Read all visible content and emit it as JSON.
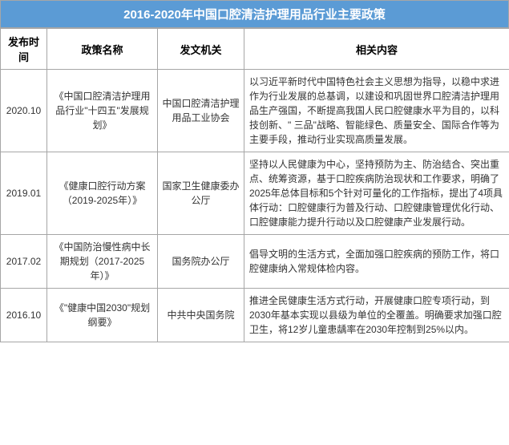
{
  "title": "2016-2020年中国口腔清洁护理用品行业主要政策",
  "headers": {
    "date": "发布时间",
    "name": "政策名称",
    "org": "发文机关",
    "content": "相关内容"
  },
  "rows": [
    {
      "date": "2020.10",
      "name": "《中国口腔清洁护理用品行业\"十四五\"发展规划》",
      "org": "中国口腔清洁护理用品工业协会",
      "content": "以习近平新时代中国特色社会主义思想为指导，以稳中求进作为行业发展的总基调，以建设和巩固世界口腔清洁护理用品生产强国，不断提高我国人民口腔健康水平为目的，以科技创新、\" 三品\"战略、智能绿色、质量安全、国际合作等为主要手段，推动行业实现高质量发展。"
    },
    {
      "date": "2019.01",
      "name": "《健康口腔行动方案（2019-2025年）》",
      "org": "国家卫生健康委办公厅",
      "content": "坚持以人民健康为中心，坚持预防为主、防治结合、突出重点、统筹资源，基于口腔疾病防治现状和工作要求，明确了2025年总体目标和5个针对可量化的工作指标，提出了4项具体行动：口腔健康行为普及行动、口腔健康管理优化行动、口腔健康能力提升行动以及口腔健康产业发展行动。"
    },
    {
      "date": "2017.02",
      "name": "《中国防治慢性病中长期规划（2017-2025年）》",
      "org": "国务院办公厅",
      "content": "倡导文明的生活方式，全面加强口腔疾病的预防工作，将口腔健康纳入常规体检内容。"
    },
    {
      "date": "2016.10",
      "name": "《\"健康中国2030\"规划纲要》",
      "org": "中共中央国务院",
      "content": "推进全民健康生活方式行动，开展健康口腔专项行动，到2030年基本实现以县级为单位的全覆盖。明确要求加强口腔卫生，将12岁儿童患龋率在2030年控制到25%以内。"
    }
  ],
  "colors": {
    "header_bg": "#5b9bd5",
    "header_text": "#ffffff",
    "border": "#a6a6a6",
    "text": "#333333",
    "background": "#ffffff"
  }
}
